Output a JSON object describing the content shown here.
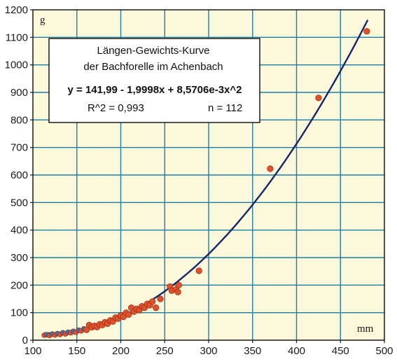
{
  "chart_data": {
    "type": "scatter",
    "title_lines": [
      "Längen-Gewichts-Kurve",
      "der Bachforelle im Achenbach"
    ],
    "equation": "y = 141,99 - 1,9998x + 8,5706e-3x^2",
    "r_squared": "R^2 = 0,993",
    "n_label": "n = 112",
    "xlabel": "mm",
    "ylabel": "g",
    "xlim": [
      100,
      500
    ],
    "ylim": [
      0,
      1200
    ],
    "x_ticks": [
      100,
      150,
      200,
      250,
      300,
      350,
      400,
      450,
      500
    ],
    "y_ticks": [
      0,
      100,
      200,
      300,
      400,
      500,
      600,
      700,
      800,
      900,
      1000,
      1100,
      1200
    ],
    "grid": true,
    "colors": {
      "background": "#fbf8dc",
      "grid": "#1f7fa3",
      "curve": "#16266b",
      "points": "#e0502a",
      "points_small": "#3f6fb0"
    },
    "points": [
      {
        "x": 113,
        "y": 18
      },
      {
        "x": 116,
        "y": 20
      },
      {
        "x": 119,
        "y": 17
      },
      {
        "x": 122,
        "y": 22
      },
      {
        "x": 125,
        "y": 19
      },
      {
        "x": 128,
        "y": 24
      },
      {
        "x": 131,
        "y": 21
      },
      {
        "x": 134,
        "y": 27
      },
      {
        "x": 137,
        "y": 23
      },
      {
        "x": 140,
        "y": 29
      },
      {
        "x": 143,
        "y": 27
      },
      {
        "x": 146,
        "y": 32
      },
      {
        "x": 149,
        "y": 29
      },
      {
        "x": 152,
        "y": 36
      },
      {
        "x": 155,
        "y": 34
      },
      {
        "x": 158,
        "y": 41
      },
      {
        "x": 161,
        "y": 38
      },
      {
        "x": 164,
        "y": 55
      },
      {
        "x": 167,
        "y": 47
      },
      {
        "x": 170,
        "y": 52
      },
      {
        "x": 173,
        "y": 48
      },
      {
        "x": 176,
        "y": 58
      },
      {
        "x": 179,
        "y": 55
      },
      {
        "x": 182,
        "y": 65
      },
      {
        "x": 185,
        "y": 60
      },
      {
        "x": 188,
        "y": 72
      },
      {
        "x": 191,
        "y": 68
      },
      {
        "x": 194,
        "y": 82
      },
      {
        "x": 197,
        "y": 78
      },
      {
        "x": 200,
        "y": 90
      },
      {
        "x": 203,
        "y": 85
      },
      {
        "x": 206,
        "y": 100
      },
      {
        "x": 209,
        "y": 93
      },
      {
        "x": 212,
        "y": 118
      },
      {
        "x": 215,
        "y": 104
      },
      {
        "x": 218,
        "y": 114
      },
      {
        "x": 221,
        "y": 109
      },
      {
        "x": 224,
        "y": 123
      },
      {
        "x": 227,
        "y": 118
      },
      {
        "x": 230,
        "y": 132
      },
      {
        "x": 233,
        "y": 127
      },
      {
        "x": 236,
        "y": 140
      },
      {
        "x": 240,
        "y": 118
      },
      {
        "x": 245,
        "y": 150
      },
      {
        "x": 256,
        "y": 195
      },
      {
        "x": 258,
        "y": 180
      },
      {
        "x": 263,
        "y": 185
      },
      {
        "x": 265,
        "y": 175
      },
      {
        "x": 266,
        "y": 200
      },
      {
        "x": 289,
        "y": 252
      },
      {
        "x": 370,
        "y": 623
      },
      {
        "x": 425,
        "y": 880
      },
      {
        "x": 480,
        "y": 1122
      }
    ],
    "fit_curve": {
      "a": 141.99,
      "b": -1.9998,
      "c": 0.0085706,
      "x_from": 113,
      "x_to": 482
    }
  }
}
